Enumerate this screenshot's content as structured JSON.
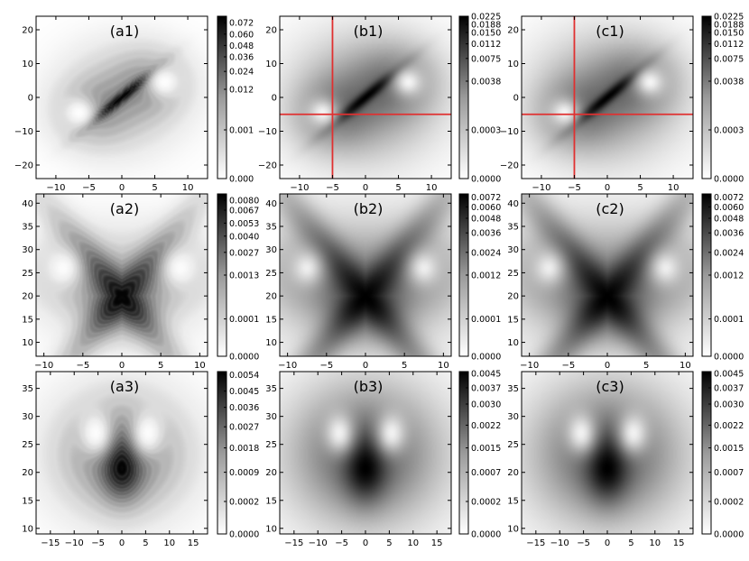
{
  "chart_data": [
    {
      "id": "a1",
      "type": "heatmap",
      "title": "(a1)",
      "xlim": [
        -13,
        13
      ],
      "ylim": [
        -24,
        24
      ],
      "xticks": [
        "−10",
        "−5",
        "0",
        "5",
        "10"
      ],
      "yticks": [
        "−20",
        "−10",
        "0",
        "10",
        "20"
      ],
      "xtick_values": [
        -10,
        -5,
        0,
        5,
        10
      ],
      "ytick_values": [
        -20,
        -10,
        0,
        10,
        20
      ],
      "colorbar": {
        "ticks": [
          "0.000",
          "0.001",
          "0.012",
          "0.024",
          "0.036",
          "0.048",
          "0.060",
          "0.072"
        ],
        "positions": [
          0,
          0.3,
          0.55,
          0.66,
          0.75,
          0.82,
          0.89,
          0.96
        ]
      },
      "crosshair": null,
      "pattern": "xy",
      "gamma": 1.3,
      "lines": true
    },
    {
      "id": "b1",
      "type": "heatmap",
      "title": "(b1)",
      "xlim": [
        -13,
        13
      ],
      "ylim": [
        -24,
        24
      ],
      "xticks": [
        "−10",
        "−5",
        "0",
        "5",
        "10"
      ],
      "yticks": [
        "−20",
        "−10",
        "0",
        "10",
        "20"
      ],
      "xtick_values": [
        -10,
        -5,
        0,
        5,
        10
      ],
      "ytick_values": [
        -20,
        -10,
        0,
        10,
        20
      ],
      "colorbar": {
        "ticks": [
          "0.0000",
          "0.0003",
          "0.0038",
          "0.0075",
          "0.0112",
          "0.0150",
          "0.0188",
          "0.0225"
        ],
        "positions": [
          0,
          0.3,
          0.6,
          0.74,
          0.83,
          0.9,
          0.95,
          1.0
        ]
      },
      "crosshair": {
        "x": -5,
        "y": -5,
        "color": "#e03030"
      },
      "pattern": "xy",
      "gamma": 0.85,
      "lines": false
    },
    {
      "id": "c1",
      "type": "heatmap",
      "title": "(c1)",
      "xlim": [
        -13,
        13
      ],
      "ylim": [
        -24,
        24
      ],
      "xticks": [
        "−10",
        "−5",
        "0",
        "5",
        "10"
      ],
      "yticks": [
        "−20",
        "−10",
        "0",
        "10",
        "20"
      ],
      "xtick_values": [
        -10,
        -5,
        0,
        5,
        10
      ],
      "ytick_values": [
        -20,
        -10,
        0,
        10,
        20
      ],
      "colorbar": {
        "ticks": [
          "0.0000",
          "0.0003",
          "0.0038",
          "0.0075",
          "0.0112",
          "0.0150",
          "0.0188",
          "0.0225"
        ],
        "positions": [
          0,
          0.3,
          0.6,
          0.74,
          0.83,
          0.9,
          0.95,
          1.0
        ]
      },
      "crosshair": {
        "x": -5,
        "y": -5,
        "color": "#e03030"
      },
      "pattern": "xy",
      "gamma": 0.85,
      "lines": false
    },
    {
      "id": "a2",
      "type": "heatmap",
      "title": "(a2)",
      "xlim": [
        -11,
        11
      ],
      "ylim": [
        7,
        42
      ],
      "xticks": [
        "−10",
        "−5",
        "0",
        "5",
        "10"
      ],
      "yticks": [
        "10",
        "15",
        "20",
        "25",
        "30",
        "35",
        "40"
      ],
      "xtick_values": [
        -10,
        -5,
        0,
        5,
        10
      ],
      "ytick_values": [
        10,
        15,
        20,
        25,
        30,
        35,
        40
      ],
      "colorbar": {
        "ticks": [
          "0.0000",
          "0.0001",
          "0.0013",
          "0.0027",
          "0.0040",
          "0.0053",
          "0.0067",
          "0.0080"
        ],
        "positions": [
          0,
          0.23,
          0.5,
          0.64,
          0.74,
          0.82,
          0.9,
          0.96
        ]
      },
      "crosshair": null,
      "pattern": "xz",
      "gamma": 1.2,
      "lines": true
    },
    {
      "id": "b2",
      "type": "heatmap",
      "title": "(b2)",
      "xlim": [
        -11,
        11
      ],
      "ylim": [
        7,
        42
      ],
      "xticks": [
        "−10",
        "−5",
        "0",
        "5",
        "10"
      ],
      "yticks": [
        "10",
        "15",
        "20",
        "25",
        "30",
        "35",
        "40"
      ],
      "xtick_values": [
        -10,
        -5,
        0,
        5,
        10
      ],
      "ytick_values": [
        10,
        15,
        20,
        25,
        30,
        35,
        40
      ],
      "colorbar": {
        "ticks": [
          "0.0000",
          "0.0001",
          "0.0012",
          "0.0024",
          "0.0036",
          "0.0048",
          "0.0060",
          "0.0072"
        ],
        "positions": [
          0,
          0.23,
          0.5,
          0.64,
          0.76,
          0.85,
          0.92,
          0.98
        ]
      },
      "crosshair": null,
      "pattern": "xz",
      "gamma": 0.75,
      "lines": false
    },
    {
      "id": "c2",
      "type": "heatmap",
      "title": "(c2)",
      "xlim": [
        -11,
        11
      ],
      "ylim": [
        7,
        42
      ],
      "xticks": [
        "−10",
        "−5",
        "0",
        "5",
        "10"
      ],
      "yticks": [
        "10",
        "15",
        "20",
        "25",
        "30",
        "35",
        "40"
      ],
      "xtick_values": [
        -10,
        -5,
        0,
        5,
        10
      ],
      "ytick_values": [
        10,
        15,
        20,
        25,
        30,
        35,
        40
      ],
      "colorbar": {
        "ticks": [
          "0.0000",
          "0.0001",
          "0.0012",
          "0.0024",
          "0.0036",
          "0.0048",
          "0.0060",
          "0.0072"
        ],
        "positions": [
          0,
          0.23,
          0.5,
          0.64,
          0.76,
          0.85,
          0.92,
          0.98
        ]
      },
      "crosshair": null,
      "pattern": "xz",
      "gamma": 0.75,
      "lines": false
    },
    {
      "id": "a3",
      "type": "heatmap",
      "title": "(a3)",
      "xlim": [
        -18,
        18
      ],
      "ylim": [
        9,
        38
      ],
      "xticks": [
        "−15",
        "−10",
        "−5",
        "0",
        "5",
        "10",
        "15"
      ],
      "yticks": [
        "10",
        "15",
        "20",
        "25",
        "30",
        "35"
      ],
      "xtick_values": [
        -15,
        -10,
        -5,
        0,
        5,
        10,
        15
      ],
      "ytick_values": [
        10,
        15,
        20,
        25,
        30,
        35
      ],
      "colorbar": {
        "ticks": [
          "0.0000",
          "0.0002",
          "0.0009",
          "0.0018",
          "0.0027",
          "0.0036",
          "0.0045",
          "0.0054"
        ],
        "positions": [
          0,
          0.2,
          0.38,
          0.53,
          0.66,
          0.78,
          0.88,
          0.98
        ]
      },
      "crosshair": null,
      "pattern": "uz",
      "gamma": 1.5,
      "lines": true
    },
    {
      "id": "b3",
      "type": "heatmap",
      "title": "(b3)",
      "xlim": [
        -18,
        18
      ],
      "ylim": [
        9,
        38
      ],
      "xticks": [
        "−15",
        "−10",
        "−5",
        "0",
        "5",
        "10",
        "15"
      ],
      "yticks": [
        "10",
        "15",
        "20",
        "25",
        "30",
        "35"
      ],
      "xtick_values": [
        -15,
        -10,
        -5,
        0,
        5,
        10,
        15
      ],
      "ytick_values": [
        10,
        15,
        20,
        25,
        30,
        35
      ],
      "colorbar": {
        "ticks": [
          "0.0000",
          "0.0002",
          "0.0007",
          "0.0015",
          "0.0022",
          "0.0030",
          "0.0037",
          "0.0045"
        ],
        "positions": [
          0,
          0.2,
          0.38,
          0.53,
          0.67,
          0.8,
          0.9,
          0.99
        ]
      },
      "crosshair": null,
      "pattern": "uz",
      "gamma": 1.0,
      "lines": false
    },
    {
      "id": "c3",
      "type": "heatmap",
      "title": "(c3)",
      "xlim": [
        -18,
        18
      ],
      "ylim": [
        9,
        38
      ],
      "xticks": [
        "−15",
        "−10",
        "−5",
        "0",
        "5",
        "10",
        "15"
      ],
      "yticks": [
        "10",
        "15",
        "20",
        "25",
        "30",
        "35"
      ],
      "xtick_values": [
        -15,
        -10,
        -5,
        0,
        5,
        10,
        15
      ],
      "ytick_values": [
        10,
        15,
        20,
        25,
        30,
        35
      ],
      "colorbar": {
        "ticks": [
          "0.0000",
          "0.0002",
          "0.0007",
          "0.0015",
          "0.0022",
          "0.0030",
          "0.0037",
          "0.0045"
        ],
        "positions": [
          0,
          0.2,
          0.38,
          0.53,
          0.67,
          0.8,
          0.9,
          0.99
        ]
      },
      "crosshair": null,
      "pattern": "uz",
      "gamma": 1.0,
      "lines": false
    }
  ]
}
